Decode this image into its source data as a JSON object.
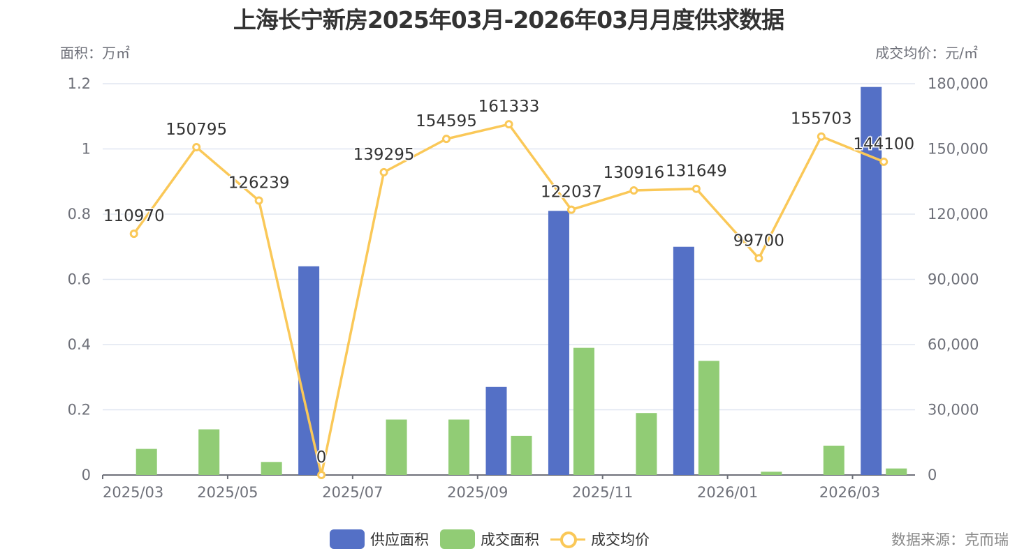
{
  "title": "上海长宁新房2025年03月-2026年03月月度供求数据",
  "left_axis_name": "面积：万㎡",
  "right_axis_name": "成交均价：元/㎡",
  "legend": {
    "supply": "供应面积",
    "deal": "成交面积",
    "price": "成交均价"
  },
  "source": "数据来源：克而瑞",
  "colors": {
    "supply": "#5470c6",
    "deal": "#91cc75",
    "price": "#fac858"
  },
  "chart_data": {
    "type": "bar",
    "title": "上海长宁新房2025年03月-2026年03月月度供求数据",
    "categories": [
      "2025/03",
      "2025/04",
      "2025/05",
      "2025/06",
      "2025/07",
      "2025/08",
      "2025/09",
      "2025/10",
      "2025/11",
      "2025/12",
      "2026/01",
      "2026/02",
      "2026/03"
    ],
    "x_tick_labels": [
      "2025/03",
      "2025/05",
      "2025/07",
      "2025/09",
      "2025/11",
      "2026/01",
      "2026/03"
    ],
    "series": [
      {
        "name": "供应面积",
        "type": "bar",
        "axis": "left",
        "values": [
          0,
          0,
          0,
          0.64,
          0,
          0,
          0.27,
          0.81,
          0,
          0.7,
          0,
          0,
          1.19
        ]
      },
      {
        "name": "成交面积",
        "type": "bar",
        "axis": "left",
        "values": [
          0.08,
          0.14,
          0.04,
          0,
          0.17,
          0.17,
          0.12,
          0.39,
          0.19,
          0.35,
          0.01,
          0.09,
          0.02
        ]
      },
      {
        "name": "成交均价",
        "type": "line",
        "axis": "right",
        "values": [
          110970,
          150795,
          126239,
          0,
          139295,
          154595,
          161333,
          122037,
          130916,
          131649,
          99700,
          155703,
          144100
        ]
      }
    ],
    "ylabel": "面积：万㎡",
    "y2label": "成交均价：元/㎡",
    "ylim": [
      0,
      1.2
    ],
    "y2lim": [
      0,
      180000
    ],
    "yticks": [
      "0",
      "0.2",
      "0.4",
      "0.6",
      "0.8",
      "1",
      "1.2"
    ],
    "y2ticks": [
      "0",
      "30,000",
      "60,000",
      "90,000",
      "120,000",
      "150,000",
      "180,000"
    ],
    "grid": true,
    "legend_position": "bottom"
  }
}
